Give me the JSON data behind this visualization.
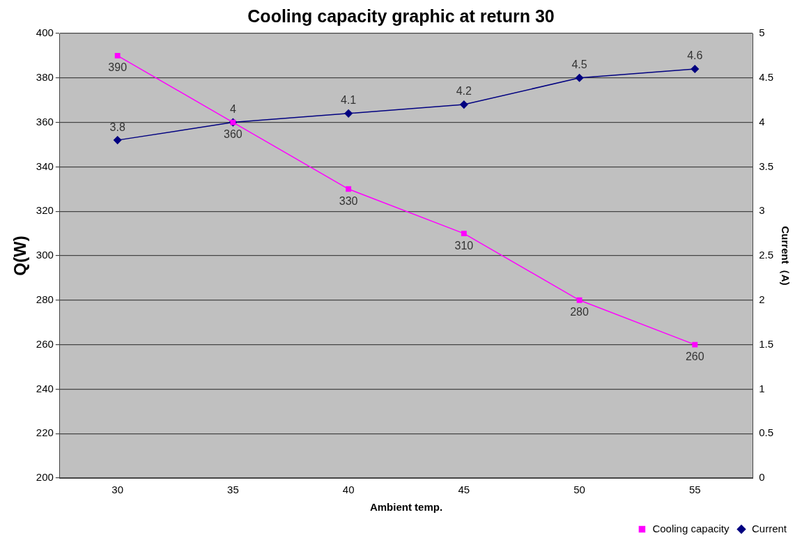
{
  "chart_data": {
    "type": "line",
    "title": "Cooling capacity graphic at return 30",
    "xlabel": "Ambient temp.",
    "ylabel": "Q(W)",
    "y2label": "Current（A)",
    "categories": [
      "30",
      "35",
      "40",
      "45",
      "50",
      "55"
    ],
    "series": [
      {
        "name": "Cooling capacity",
        "color": "#ff00ff",
        "marker": "square",
        "values": [
          390,
          360,
          330,
          310,
          280,
          260
        ]
      },
      {
        "name": "Current",
        "color": "#000080",
        "marker": "diamond",
        "axis": "y2",
        "values": [
          3.8,
          4,
          4.1,
          4.2,
          4.5,
          4.6
        ]
      }
    ],
    "ylim": [
      200,
      400
    ],
    "yticks": [
      200,
      220,
      240,
      260,
      280,
      300,
      320,
      340,
      360,
      380,
      400
    ],
    "y2lim": [
      0,
      5
    ],
    "y2ticks": [
      0,
      0.5,
      1,
      1.5,
      2,
      2.5,
      3,
      3.5,
      4,
      4.5,
      5
    ],
    "grid": "y",
    "legend": "bottom right",
    "data_labels": true
  }
}
